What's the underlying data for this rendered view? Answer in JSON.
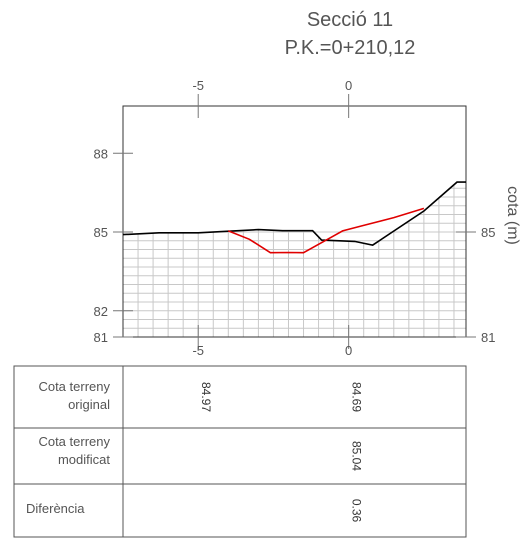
{
  "title": "Secció 11",
  "subtitle": "P.K.=0+210,12",
  "chart_data": {
    "type": "line",
    "ylabel": "cota (m)",
    "x_top_ticks": [
      "-5",
      "0"
    ],
    "x_bottom_ticks": [
      "-5",
      "0"
    ],
    "y_left_ticks": [
      "88",
      "85",
      "82",
      "81"
    ],
    "y_right_ticks": [
      "85",
      "81"
    ],
    "xlim": [
      -7.5,
      3.9
    ],
    "ylim": [
      81,
      89.8
    ],
    "grid": true,
    "series": [
      {
        "key": "original",
        "color": "#000000",
        "points": [
          [
            -7.5,
            84.9
          ],
          [
            -6.3,
            84.97
          ],
          [
            -5.0,
            84.97
          ],
          [
            -3.0,
            85.09
          ],
          [
            -2.2,
            85.05
          ],
          [
            -1.2,
            85.05
          ],
          [
            -0.9,
            84.69
          ],
          [
            0.2,
            84.64
          ],
          [
            0.8,
            84.5
          ],
          [
            2.5,
            85.8
          ],
          [
            3.6,
            86.9
          ],
          [
            3.9,
            86.9
          ]
        ]
      },
      {
        "key": "modificat",
        "color": "#e00000",
        "points": [
          [
            -4.0,
            85.04
          ],
          [
            -3.3,
            84.72
          ],
          [
            -2.6,
            84.21
          ],
          [
            -2.0,
            84.22
          ],
          [
            -1.5,
            84.21
          ],
          [
            -0.5,
            84.85
          ],
          [
            -0.2,
            85.04
          ],
          [
            0.5,
            85.25
          ],
          [
            1.5,
            85.55
          ],
          [
            2.5,
            85.9
          ]
        ]
      }
    ]
  },
  "table": {
    "rows": [
      {
        "label_line1": "Cota terreny",
        "label_line2": "original"
      },
      {
        "label_line1": "Cota terreny",
        "label_line2": "modificat"
      },
      {
        "label_line1": "Diferència",
        "label_line2": ""
      }
    ],
    "values": [
      {
        "row": 0,
        "x": -5,
        "text": "84.97"
      },
      {
        "row": 0,
        "x": 0,
        "text": "84.69"
      },
      {
        "row": 1,
        "x": 0,
        "text": "85.04"
      },
      {
        "row": 2,
        "x": 0,
        "text": "0.36"
      }
    ]
  }
}
